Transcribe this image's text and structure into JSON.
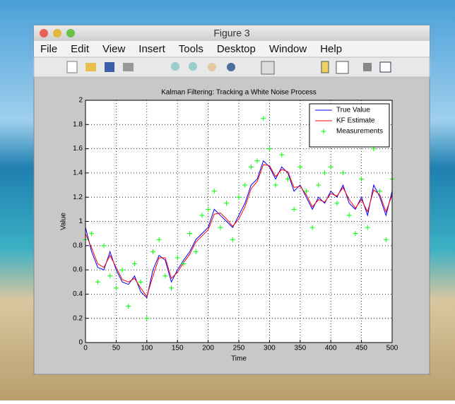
{
  "window": {
    "title": "Figure 3",
    "menu": [
      "File",
      "Edit",
      "View",
      "Insert",
      "Tools",
      "Desktop",
      "Window",
      "Help"
    ]
  },
  "chart_data": {
    "type": "line",
    "title": "Kalman Filtering: Tracking a White Noise Process",
    "x_label": "Time",
    "y_label": "Value",
    "x": [
      0,
      10,
      20,
      30,
      40,
      50,
      60,
      70,
      80,
      90,
      100,
      110,
      120,
      130,
      140,
      150,
      160,
      170,
      180,
      190,
      200,
      210,
      220,
      230,
      240,
      250,
      260,
      270,
      280,
      290,
      300,
      310,
      320,
      330,
      340,
      350,
      360,
      370,
      380,
      390,
      400,
      410,
      420,
      430,
      440,
      450,
      460,
      470,
      480,
      490,
      500
    ],
    "series": [
      {
        "name": "True Value",
        "color": "#0000ff",
        "style": "line",
        "values": [
          0.95,
          0.75,
          0.62,
          0.6,
          0.75,
          0.6,
          0.5,
          0.48,
          0.55,
          0.42,
          0.37,
          0.6,
          0.72,
          0.68,
          0.5,
          0.6,
          0.68,
          0.75,
          0.85,
          0.9,
          0.95,
          1.1,
          1.05,
          1.0,
          0.95,
          1.05,
          1.15,
          1.3,
          1.35,
          1.5,
          1.45,
          1.35,
          1.45,
          1.4,
          1.25,
          1.3,
          1.2,
          1.1,
          1.2,
          1.15,
          1.25,
          1.2,
          1.3,
          1.15,
          1.1,
          1.2,
          1.05,
          1.3,
          1.2,
          1.05,
          1.25
        ]
      },
      {
        "name": "KF Estimate",
        "color": "#ff0000",
        "style": "line",
        "values": [
          0.9,
          0.78,
          0.65,
          0.62,
          0.72,
          0.62,
          0.52,
          0.5,
          0.53,
          0.45,
          0.38,
          0.55,
          0.7,
          0.7,
          0.53,
          0.58,
          0.66,
          0.73,
          0.83,
          0.88,
          0.93,
          1.06,
          1.07,
          1.02,
          0.96,
          1.02,
          1.12,
          1.27,
          1.33,
          1.47,
          1.46,
          1.37,
          1.43,
          1.41,
          1.28,
          1.29,
          1.22,
          1.12,
          1.18,
          1.16,
          1.23,
          1.21,
          1.28,
          1.18,
          1.11,
          1.18,
          1.08,
          1.26,
          1.22,
          1.08,
          1.22
        ]
      },
      {
        "name": "Measurements",
        "color": "#00ff00",
        "style": "marker",
        "values": [
          0.85,
          0.9,
          0.5,
          0.8,
          0.55,
          0.45,
          0.6,
          0.3,
          0.65,
          0.5,
          0.2,
          0.75,
          0.85,
          0.55,
          0.45,
          0.7,
          0.65,
          0.9,
          0.75,
          1.05,
          1.1,
          1.25,
          0.95,
          1.15,
          0.85,
          1.2,
          1.3,
          1.45,
          1.5,
          1.85,
          1.6,
          1.3,
          1.55,
          1.35,
          1.1,
          1.45,
          1.25,
          0.95,
          1.3,
          1.4,
          1.45,
          1.15,
          1.4,
          1.05,
          0.9,
          1.35,
          0.95,
          1.6,
          1.25,
          0.85,
          1.35
        ]
      }
    ],
    "xlim": [
      0,
      500
    ],
    "ylim": [
      0,
      2
    ],
    "xticks": [
      0,
      50,
      100,
      150,
      200,
      250,
      300,
      350,
      400,
      450,
      500
    ],
    "yticks": [
      0,
      0.2,
      0.4,
      0.6,
      0.8,
      1,
      1.2,
      1.4,
      1.6,
      1.8,
      2
    ],
    "grid": true,
    "legend": "upper-right"
  }
}
